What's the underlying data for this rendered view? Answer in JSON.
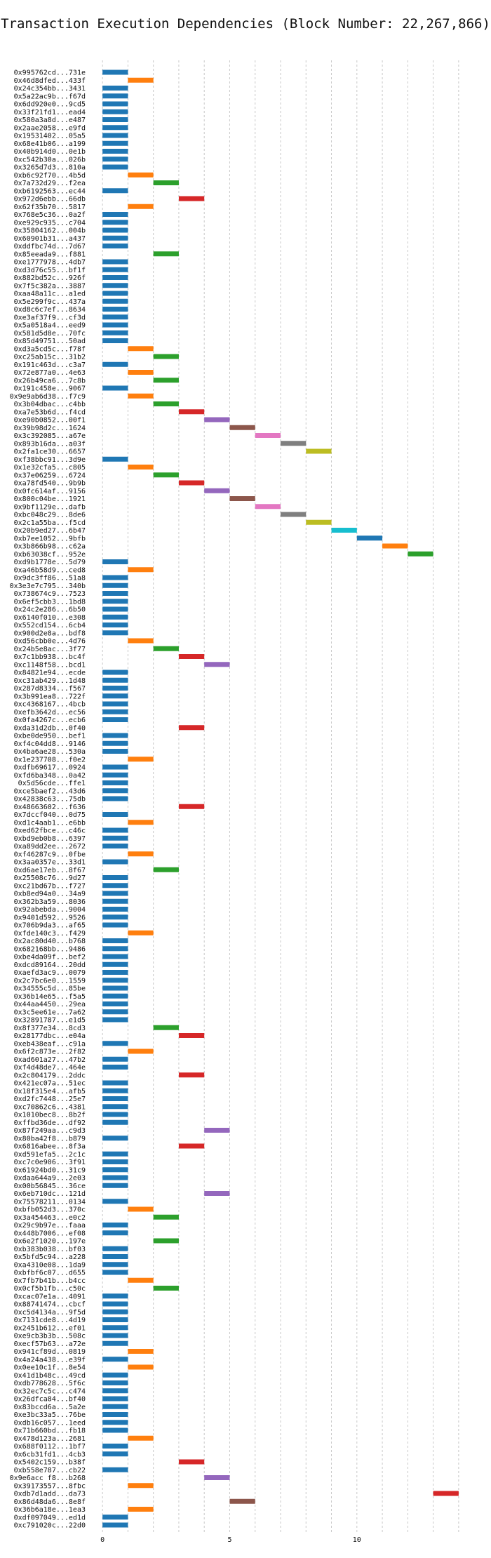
{
  "chart_data": {
    "type": "bar",
    "title": "Transaction Execution Dependencies (Block Number: 22,267,866)",
    "xlabel": "",
    "ylabel": "",
    "xlim": [
      -0.5,
      14.5
    ],
    "x_ticks": [
      0,
      5,
      10
    ],
    "grid": "vertical dashed",
    "palette": [
      "#1f77b4",
      "#ff7f0e",
      "#2ca02c",
      "#d62728",
      "#9467bd",
      "#8c564b",
      "#e377c2",
      "#7f7f7f",
      "#bcbd22",
      "#17becf"
    ],
    "transactions": [
      {
        "label": "0x995762cd...731e",
        "start": 0
      },
      {
        "label": "0x46d8dfed...433f",
        "start": 1
      },
      {
        "label": "0x24c354bb...3431",
        "start": 0
      },
      {
        "label": "0x5a22ac9b...f67d",
        "start": 0
      },
      {
        "label": "0x6dd920e0...9cd5",
        "start": 0
      },
      {
        "label": "0x33f21fd1...ead4",
        "start": 0
      },
      {
        "label": "0x580a3a8d...e487",
        "start": 0
      },
      {
        "label": "0x2aae2058...e9fd",
        "start": 0
      },
      {
        "label": "0x19531402...05a5",
        "start": 0
      },
      {
        "label": "0x68e41b06...a199",
        "start": 0
      },
      {
        "label": "0x40b914d0...0e1b",
        "start": 0
      },
      {
        "label": "0xc542b30a...026b",
        "start": 0
      },
      {
        "label": "0x3265d7d3...810a",
        "start": 0
      },
      {
        "label": "0xb6c92f70...4b5d",
        "start": 1
      },
      {
        "label": "0x7a732d29...f2ea",
        "start": 2
      },
      {
        "label": "0xb6192563...ec44",
        "start": 0
      },
      {
        "label": "0x972d6ebb...66db",
        "start": 3
      },
      {
        "label": "0x62f35b70...5817",
        "start": 1
      },
      {
        "label": "0x768e5c36...0a2f",
        "start": 0
      },
      {
        "label": "0xe929c935...c704",
        "start": 0
      },
      {
        "label": "0x35804162...004b",
        "start": 0
      },
      {
        "label": "0x60901b31...a437",
        "start": 0
      },
      {
        "label": "0xddfbc74d...7d67",
        "start": 0
      },
      {
        "label": "0x85eeada9...f881",
        "start": 2
      },
      {
        "label": "0xe1777978...4db7",
        "start": 0
      },
      {
        "label": "0xd3d76c55...bf1f",
        "start": 0
      },
      {
        "label": "0x882bd52c...926f",
        "start": 0
      },
      {
        "label": "0x7f5c382a...3887",
        "start": 0
      },
      {
        "label": "0xaa48a11c...a1ed",
        "start": 0
      },
      {
        "label": "0x5e299f9c...437a",
        "start": 0
      },
      {
        "label": "0xd8c6c7ef...8634",
        "start": 0
      },
      {
        "label": "0xe3af37f9...cf3d",
        "start": 0
      },
      {
        "label": "0x5a0518a4...eed9",
        "start": 0
      },
      {
        "label": "0x581d5d8e...70fc",
        "start": 0
      },
      {
        "label": "0x85d49751...50ad",
        "start": 0
      },
      {
        "label": "0xd3a5cd5c...f78f",
        "start": 1
      },
      {
        "label": "0xc25ab15c...31b2",
        "start": 2
      },
      {
        "label": "0x191c463d...c3a7",
        "start": 0
      },
      {
        "label": "0x72e877a0...4e63",
        "start": 1
      },
      {
        "label": "0x26b49ca6...7c8b",
        "start": 2
      },
      {
        "label": "0x191c458e...9067",
        "start": 0
      },
      {
        "label": "0x9e9ab6d38...f7c9",
        "start": 1
      },
      {
        "label": "0x3b04dbac...c4bb",
        "start": 2
      },
      {
        "label": "0xa7e53b6d...f4cd",
        "start": 3
      },
      {
        "label": "0xe90b0852...00f1",
        "start": 4
      },
      {
        "label": "0x39b98d2c...1624",
        "start": 5
      },
      {
        "label": "0x3c392085...a67e",
        "start": 6
      },
      {
        "label": "0x893b16da...a03f",
        "start": 7
      },
      {
        "label": "0x2fa1ce30...6657",
        "start": 8
      },
      {
        "label": "0xf38bbc91...3d9e",
        "start": 0
      },
      {
        "label": "0x1e32cfa5...c805",
        "start": 1
      },
      {
        "label": "0x37e06259...6724",
        "start": 2
      },
      {
        "label": "0xa78fd540...9b9b",
        "start": 3
      },
      {
        "label": "0x0fc614af...9156",
        "start": 4
      },
      {
        "label": "0x800c04be...1921",
        "start": 5
      },
      {
        "label": "0x9bf1129e...dafb",
        "start": 6
      },
      {
        "label": "0xbc048c29...8de6",
        "start": 7
      },
      {
        "label": "0x2c1a55ba...f5cd",
        "start": 8
      },
      {
        "label": "0x20b9ed27...6b47",
        "start": 9
      },
      {
        "label": "0xb7ee1052...9bfb",
        "start": 10
      },
      {
        "label": "0x3b866b98...c62a",
        "start": 11
      },
      {
        "label": "0xb63038cf...952e",
        "start": 12
      },
      {
        "label": "0xd9b1778e...5d79",
        "start": 0
      },
      {
        "label": "0xa46b58d9...ced8",
        "start": 1
      },
      {
        "label": "0x9dc3ff86...51a8",
        "start": 0
      },
      {
        "label": "0x3e3e7c795...340b",
        "start": 0
      },
      {
        "label": "0x738674c9...7523",
        "start": 0
      },
      {
        "label": "0x6ef5cbb3...1bd8",
        "start": 0
      },
      {
        "label": "0x24c2e286...6b50",
        "start": 0
      },
      {
        "label": "0x6140f010...e308",
        "start": 0
      },
      {
        "label": "0x552cd154...6cb4",
        "start": 0
      },
      {
        "label": "0x900d2e8a...bdf8",
        "start": 0
      },
      {
        "label": "0xd56cbb0e...4d76",
        "start": 1
      },
      {
        "label": "0x24b5e8ac...3f77",
        "start": 2
      },
      {
        "label": "0x7c1bb938...bc4f",
        "start": 3
      },
      {
        "label": "0xc1148f58...bcd1",
        "start": 4
      },
      {
        "label": "0x84821e94...ecde",
        "start": 0
      },
      {
        "label": "0xc31ab429...1d48",
        "start": 0
      },
      {
        "label": "0x287d8334...f567",
        "start": 0
      },
      {
        "label": "0x3b991ea8...722f",
        "start": 0
      },
      {
        "label": "0xc4368167...4bcb",
        "start": 0
      },
      {
        "label": "0xefb3642d...ec56",
        "start": 0
      },
      {
        "label": "0x0fa4267c...ecb6",
        "start": 0
      },
      {
        "label": "0xda31d2db...0f40",
        "start": 3
      },
      {
        "label": "0xbe0de950...bef1",
        "start": 0
      },
      {
        "label": "0xf4c04dd8...9146",
        "start": 0
      },
      {
        "label": "0x4ba6ae28...530a",
        "start": 0
      },
      {
        "label": "0x1e237708...f0e2",
        "start": 1
      },
      {
        "label": "0xdfb69617...0924",
        "start": 0
      },
      {
        "label": "0xfd6ba348...0a42",
        "start": 0
      },
      {
        "label": "0x5d56cde...ffe1",
        "start": 0
      },
      {
        "label": "0xce5baef2...43d6",
        "start": 0
      },
      {
        "label": "0x42838c63...75db",
        "start": 0
      },
      {
        "label": "0x48663602...f636",
        "start": 3
      },
      {
        "label": "0x7dccf040...0d75",
        "start": 0
      },
      {
        "label": "0xd1c4aab1...e6bb",
        "start": 1
      },
      {
        "label": "0xed62fbce...c46c",
        "start": 0
      },
      {
        "label": "0xbd9eb0b8...6397",
        "start": 0
      },
      {
        "label": "0xa89dd2ee...2672",
        "start": 0
      },
      {
        "label": "0xf46287c9...0fbe",
        "start": 1
      },
      {
        "label": "0x3aa0357e...33d1",
        "start": 0
      },
      {
        "label": "0xd6ae17eb...8f67",
        "start": 2
      },
      {
        "label": "0x25508c76...9d27",
        "start": 0
      },
      {
        "label": "0xc21bd67b...f727",
        "start": 0
      },
      {
        "label": "0xb8ed94a0...34a9",
        "start": 0
      },
      {
        "label": "0x362b3a59...8036",
        "start": 0
      },
      {
        "label": "0x92abebda...9004",
        "start": 0
      },
      {
        "label": "0x9401d592...9526",
        "start": 0
      },
      {
        "label": "0x706b9da3...af65",
        "start": 0
      },
      {
        "label": "0xfde140c3...f429",
        "start": 1
      },
      {
        "label": "0x2ac80d40...b768",
        "start": 0
      },
      {
        "label": "0x682168bb...9486",
        "start": 0
      },
      {
        "label": "0xbe4da09f...bef2",
        "start": 0
      },
      {
        "label": "0xdcd89164...20dd",
        "start": 0
      },
      {
        "label": "0xaefd3ac9...0079",
        "start": 0
      },
      {
        "label": "0x2c7bc6e0...1559",
        "start": 0
      },
      {
        "label": "0x34555c5d...85be",
        "start": 0
      },
      {
        "label": "0x36b14e65...f5a5",
        "start": 0
      },
      {
        "label": "0x44aa4450...29ea",
        "start": 0
      },
      {
        "label": "0x3c5ee61e...7a62",
        "start": 0
      },
      {
        "label": "0x32891787...e1d5",
        "start": 0
      },
      {
        "label": "0x8f377e34...8cd3",
        "start": 2
      },
      {
        "label": "0x28177dbc...e04a",
        "start": 3
      },
      {
        "label": "0xeb438eaf...c91a",
        "start": 0
      },
      {
        "label": "0x6f2c873e...2f82",
        "start": 1
      },
      {
        "label": "0xad601a27...47b2",
        "start": 0
      },
      {
        "label": "0xf4d48de7...464e",
        "start": 0
      },
      {
        "label": "0x2c804179...2ddc",
        "start": 3
      },
      {
        "label": "0x421ec07a...51ec",
        "start": 0
      },
      {
        "label": "0x18f315e4...afb5",
        "start": 0
      },
      {
        "label": "0xd2fc7448...25e7",
        "start": 0
      },
      {
        "label": "0xc70862c6...4381",
        "start": 0
      },
      {
        "label": "0x1010bec8...8b2f",
        "start": 0
      },
      {
        "label": "0xffbd36de...df92",
        "start": 0
      },
      {
        "label": "0x87f249aa...c9d3",
        "start": 4
      },
      {
        "label": "0x80ba42f8...b879",
        "start": 0
      },
      {
        "label": "0x6816abee...8f3a",
        "start": 3
      },
      {
        "label": "0xd591efa5...2c1c",
        "start": 0
      },
      {
        "label": "0xc7c0e906...3f91",
        "start": 0
      },
      {
        "label": "0x61924bd0...31c9",
        "start": 0
      },
      {
        "label": "0xdaa644a9...2e03",
        "start": 0
      },
      {
        "label": "0x00b56845...36ce",
        "start": 0
      },
      {
        "label": "0x6eb710dc...121d",
        "start": 4
      },
      {
        "label": "0x75578211...0134",
        "start": 0
      },
      {
        "label": "0xbfb052d3...370c",
        "start": 1
      },
      {
        "label": "0x3a454463...e0c2",
        "start": 2
      },
      {
        "label": "0x29c9b97e...faaa",
        "start": 0
      },
      {
        "label": "0x448b7006...ef08",
        "start": 0
      },
      {
        "label": "0x6e2f1020...197e",
        "start": 2
      },
      {
        "label": "0xb383b038...bf03",
        "start": 0
      },
      {
        "label": "0x5bfd5c94...a228",
        "start": 0
      },
      {
        "label": "0xa4310e08...1da9",
        "start": 0
      },
      {
        "label": "0xbfbf6c07...d655",
        "start": 0
      },
      {
        "label": "0x7fb7b41b...b4cc",
        "start": 1
      },
      {
        "label": "0x0cf5b1fb...c50c",
        "start": 2
      },
      {
        "label": "0xcac07e1a...4091",
        "start": 0
      },
      {
        "label": "0x88741474...cbcf",
        "start": 0
      },
      {
        "label": "0xc5d4134a...9f5d",
        "start": 0
      },
      {
        "label": "0x7131cde8...4d19",
        "start": 0
      },
      {
        "label": "0x2451b612...ef01",
        "start": 0
      },
      {
        "label": "0xe9cb3b3b...508c",
        "start": 0
      },
      {
        "label": "0xecf57b63...a72e",
        "start": 0
      },
      {
        "label": "0x941cf89d...0819",
        "start": 1
      },
      {
        "label": "0x4a24a438...e39f",
        "start": 0
      },
      {
        "label": "0x0ee10c1f...8e54",
        "start": 1
      },
      {
        "label": "0x41d1b48c...49cd",
        "start": 0
      },
      {
        "label": "0xdb778628...5f6c",
        "start": 0
      },
      {
        "label": "0x32ec7c5c...c474",
        "start": 0
      },
      {
        "label": "0x26dfca84...bf40",
        "start": 0
      },
      {
        "label": "0x83bccd6a...5a2e",
        "start": 0
      },
      {
        "label": "0xe3bc33a5...76be",
        "start": 0
      },
      {
        "label": "0xdb16c057...1eed",
        "start": 0
      },
      {
        "label": "0x71b660bd...fb18",
        "start": 0
      },
      {
        "label": "0x478d123a...2681",
        "start": 1
      },
      {
        "label": "0x688f0112...1bf7",
        "start": 0
      },
      {
        "label": "0x6cb31fd1...4cb3",
        "start": 0
      },
      {
        "label": "0x5402c159...b38f",
        "start": 3
      },
      {
        "label": "0xb558e787...cb22",
        "start": 0
      },
      {
        "label": "0x9e6acc f8...b268",
        "start": 4
      },
      {
        "label": "0x39173557...8fbc",
        "start": 1
      },
      {
        "label": "0xdb7d1add...da73",
        "start": 13
      },
      {
        "label": "0x86d48da6...8e8f",
        "start": 5
      },
      {
        "label": "0x36b6a18e...1ea3",
        "start": 1
      },
      {
        "label": "0xdf097049...ed1d",
        "start": 0
      },
      {
        "label": "0xc791020c...22d0",
        "start": 0
      }
    ]
  }
}
